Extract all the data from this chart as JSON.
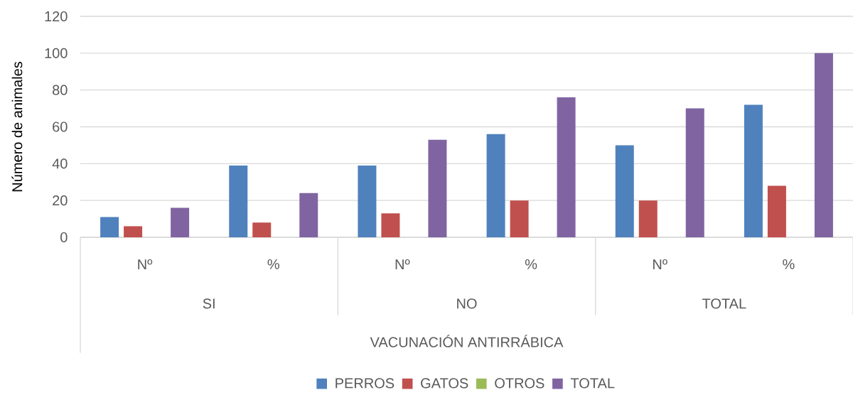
{
  "chart_data": {
    "type": "bar",
    "ylabel": "Número de animales",
    "xlabel": "VACUNACIÓN ANTIRRÁBICA",
    "categories": [
      "Nº",
      "%",
      "Nº",
      "%",
      "Nº",
      "%"
    ],
    "annotations": [
      "SI",
      "NO",
      "TOTAL"
    ],
    "series": [
      {
        "name": "PERROS",
        "color": "#4f81bd",
        "values": [
          11,
          39,
          39,
          56,
          50,
          72
        ]
      },
      {
        "name": "GATOS",
        "color": "#c0504d",
        "values": [
          6,
          8,
          13,
          20,
          20,
          28
        ]
      },
      {
        "name": "OTROS",
        "color": "#9bbb59",
        "values": [
          0,
          0,
          0,
          0,
          0,
          0
        ]
      },
      {
        "name": "TOTAL",
        "color": "#8064a2",
        "values": [
          16,
          24,
          53,
          76,
          70,
          100
        ]
      }
    ],
    "ylim": [
      0,
      120
    ],
    "yticks": [
      0,
      20,
      40,
      60,
      80,
      100,
      120
    ],
    "grid": "y",
    "legend": "bottom"
  }
}
